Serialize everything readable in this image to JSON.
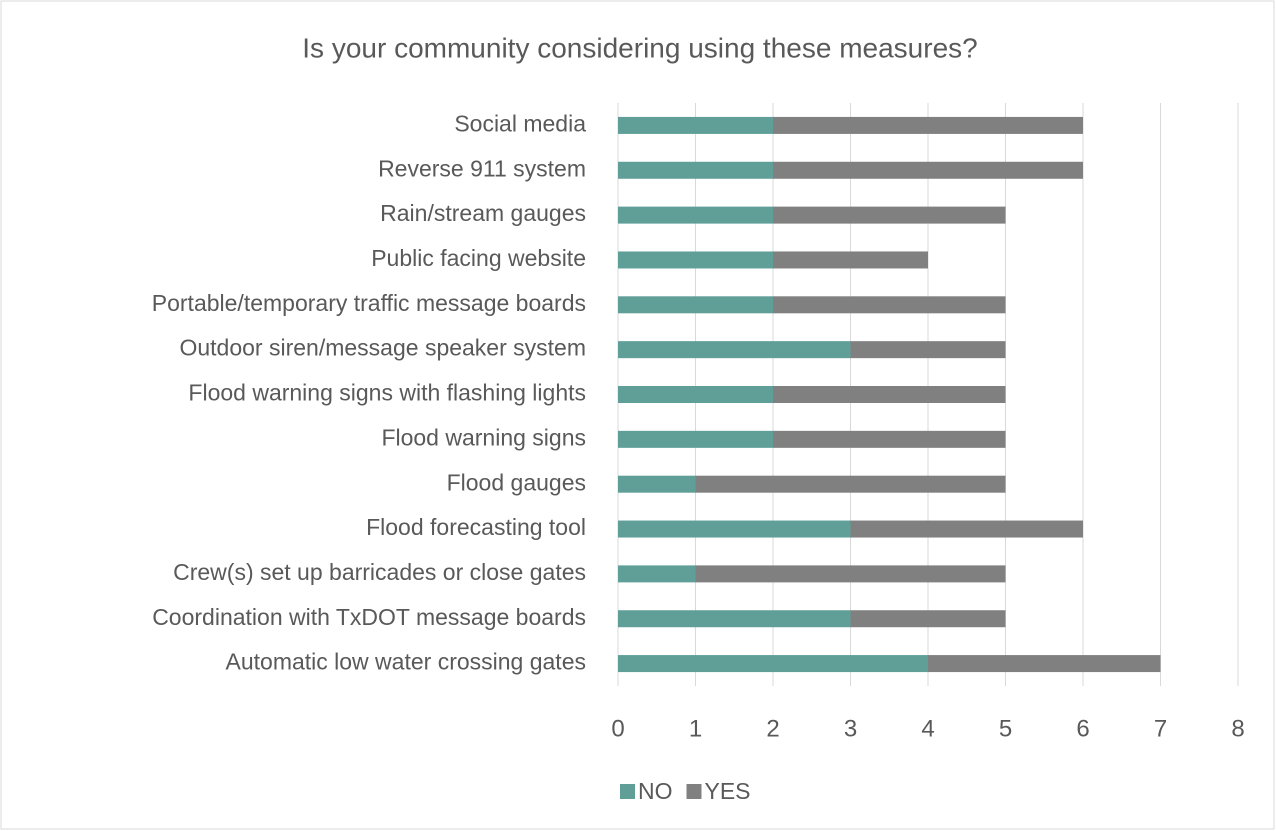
{
  "chart_data": {
    "type": "stacked-barh",
    "title": "Is your community considering using these measures?",
    "categories": [
      "Social media",
      "Reverse 911 system",
      "Rain/stream gauges",
      "Public facing website",
      "Portable/temporary traffic message boards",
      "Outdoor siren/message speaker system",
      "Flood warning signs with flashing lights",
      "Flood warning signs",
      "Flood gauges",
      "Flood forecasting tool",
      "Crew(s) set up barricades or close gates",
      "Coordination with TxDOT message boards",
      "Automatic low water crossing gates"
    ],
    "series": [
      {
        "name": "NO",
        "color": "#5f9f98",
        "values": [
          2,
          2,
          2,
          2,
          2,
          3,
          2,
          2,
          1,
          3,
          1,
          3,
          4
        ]
      },
      {
        "name": "YES",
        "color": "#808080",
        "values": [
          4,
          4,
          3,
          2,
          3,
          2,
          3,
          3,
          4,
          3,
          4,
          2,
          3
        ]
      }
    ],
    "xlim": [
      0,
      8
    ],
    "xticks": [
      0,
      1,
      2,
      3,
      4,
      5,
      6,
      7,
      8
    ],
    "grid": true,
    "legend": "bottom"
  }
}
